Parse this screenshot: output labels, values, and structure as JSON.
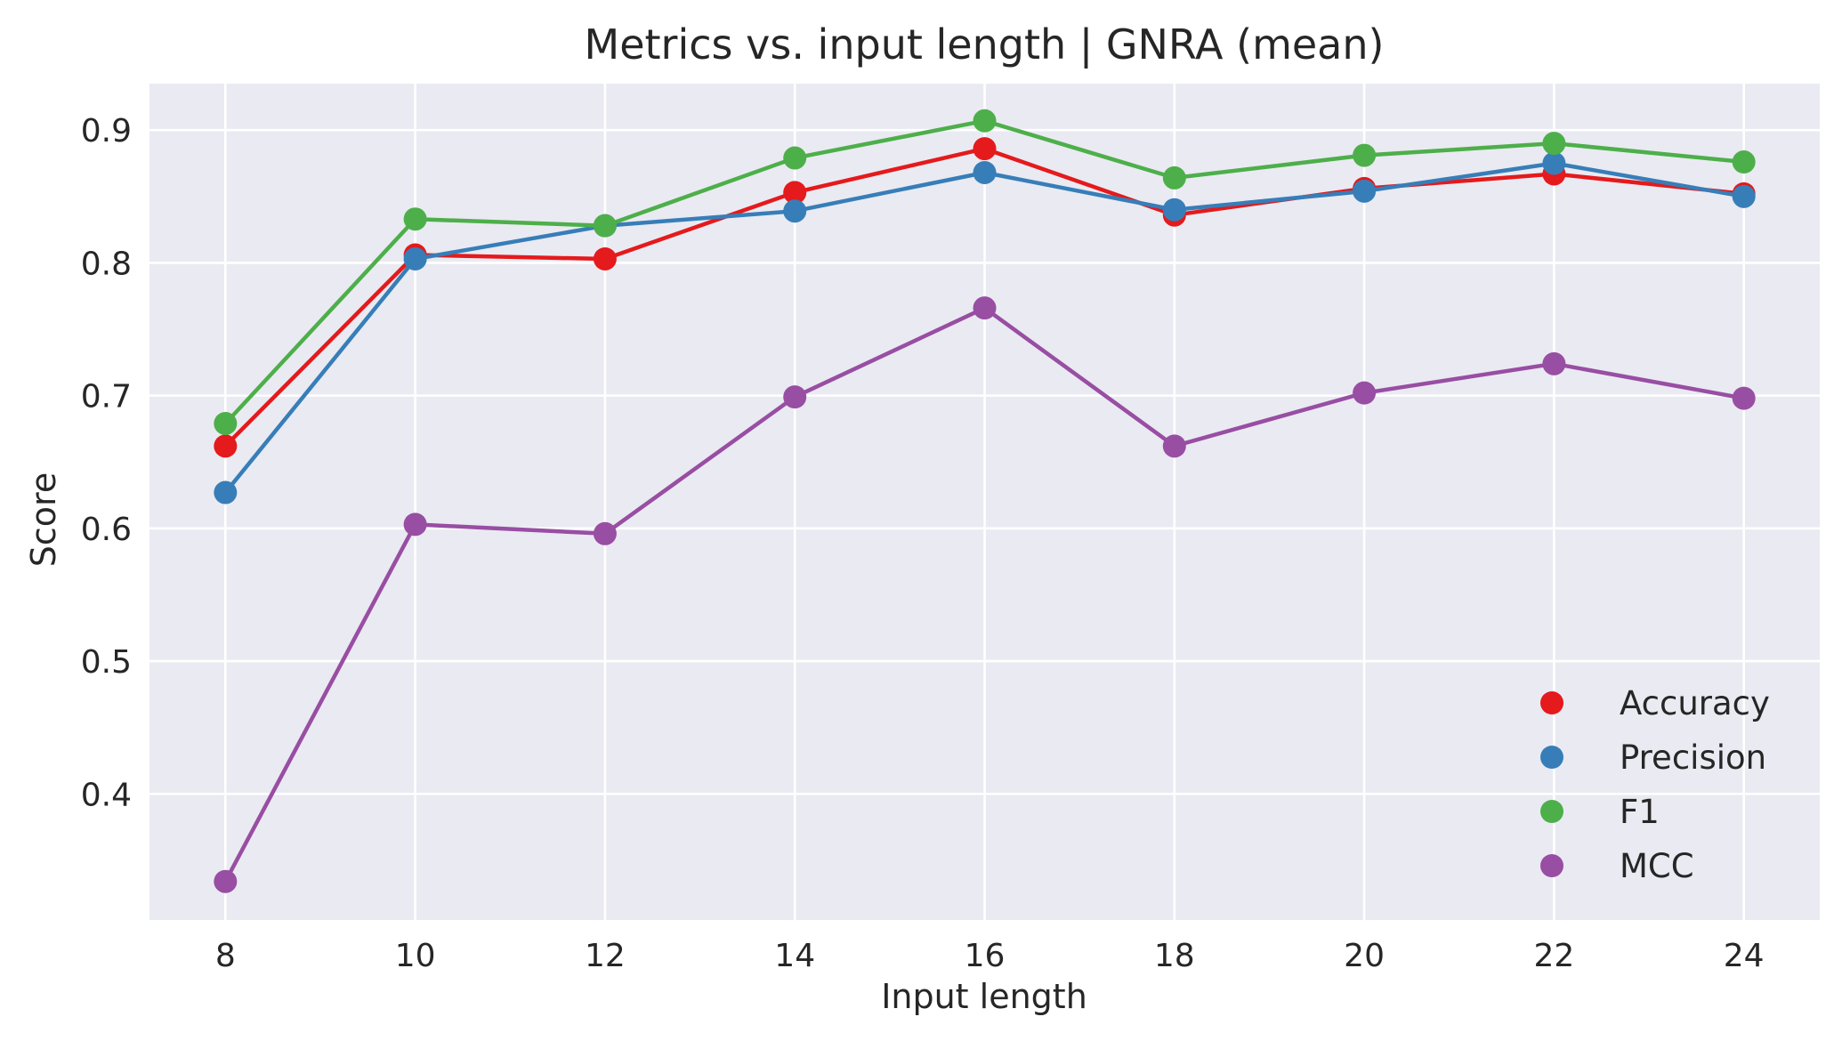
{
  "chart_data": {
    "type": "line",
    "title": "Metrics vs. input length | GNRA (mean)",
    "xlabel": "Input length",
    "ylabel": "Score",
    "x": [
      8,
      10,
      12,
      14,
      16,
      18,
      20,
      22,
      24
    ],
    "xticks": [
      8,
      10,
      12,
      14,
      16,
      18,
      20,
      22,
      24
    ],
    "yticks": [
      0.4,
      0.5,
      0.6,
      0.7,
      0.8,
      0.9
    ],
    "xlim": [
      7.2,
      24.8
    ],
    "ylim": [
      0.305,
      0.935
    ],
    "grid": true,
    "legend_position": "bottom-right",
    "background": "#eaeaf2",
    "series": [
      {
        "name": "Accuracy",
        "color": "#e41a1c",
        "values": [
          0.662,
          0.806,
          0.803,
          0.853,
          0.886,
          0.836,
          0.856,
          0.867,
          0.852
        ]
      },
      {
        "name": "Precision",
        "color": "#377eb8",
        "values": [
          0.627,
          0.803,
          0.828,
          0.839,
          0.868,
          0.84,
          0.854,
          0.875,
          0.85
        ]
      },
      {
        "name": "F1",
        "color": "#4daf4a",
        "values": [
          0.679,
          0.833,
          0.828,
          0.879,
          0.907,
          0.864,
          0.881,
          0.89,
          0.876
        ]
      },
      {
        "name": "MCC",
        "color": "#984ea3",
        "values": [
          0.334,
          0.603,
          0.596,
          0.699,
          0.766,
          0.662,
          0.702,
          0.724,
          0.698
        ]
      }
    ]
  }
}
